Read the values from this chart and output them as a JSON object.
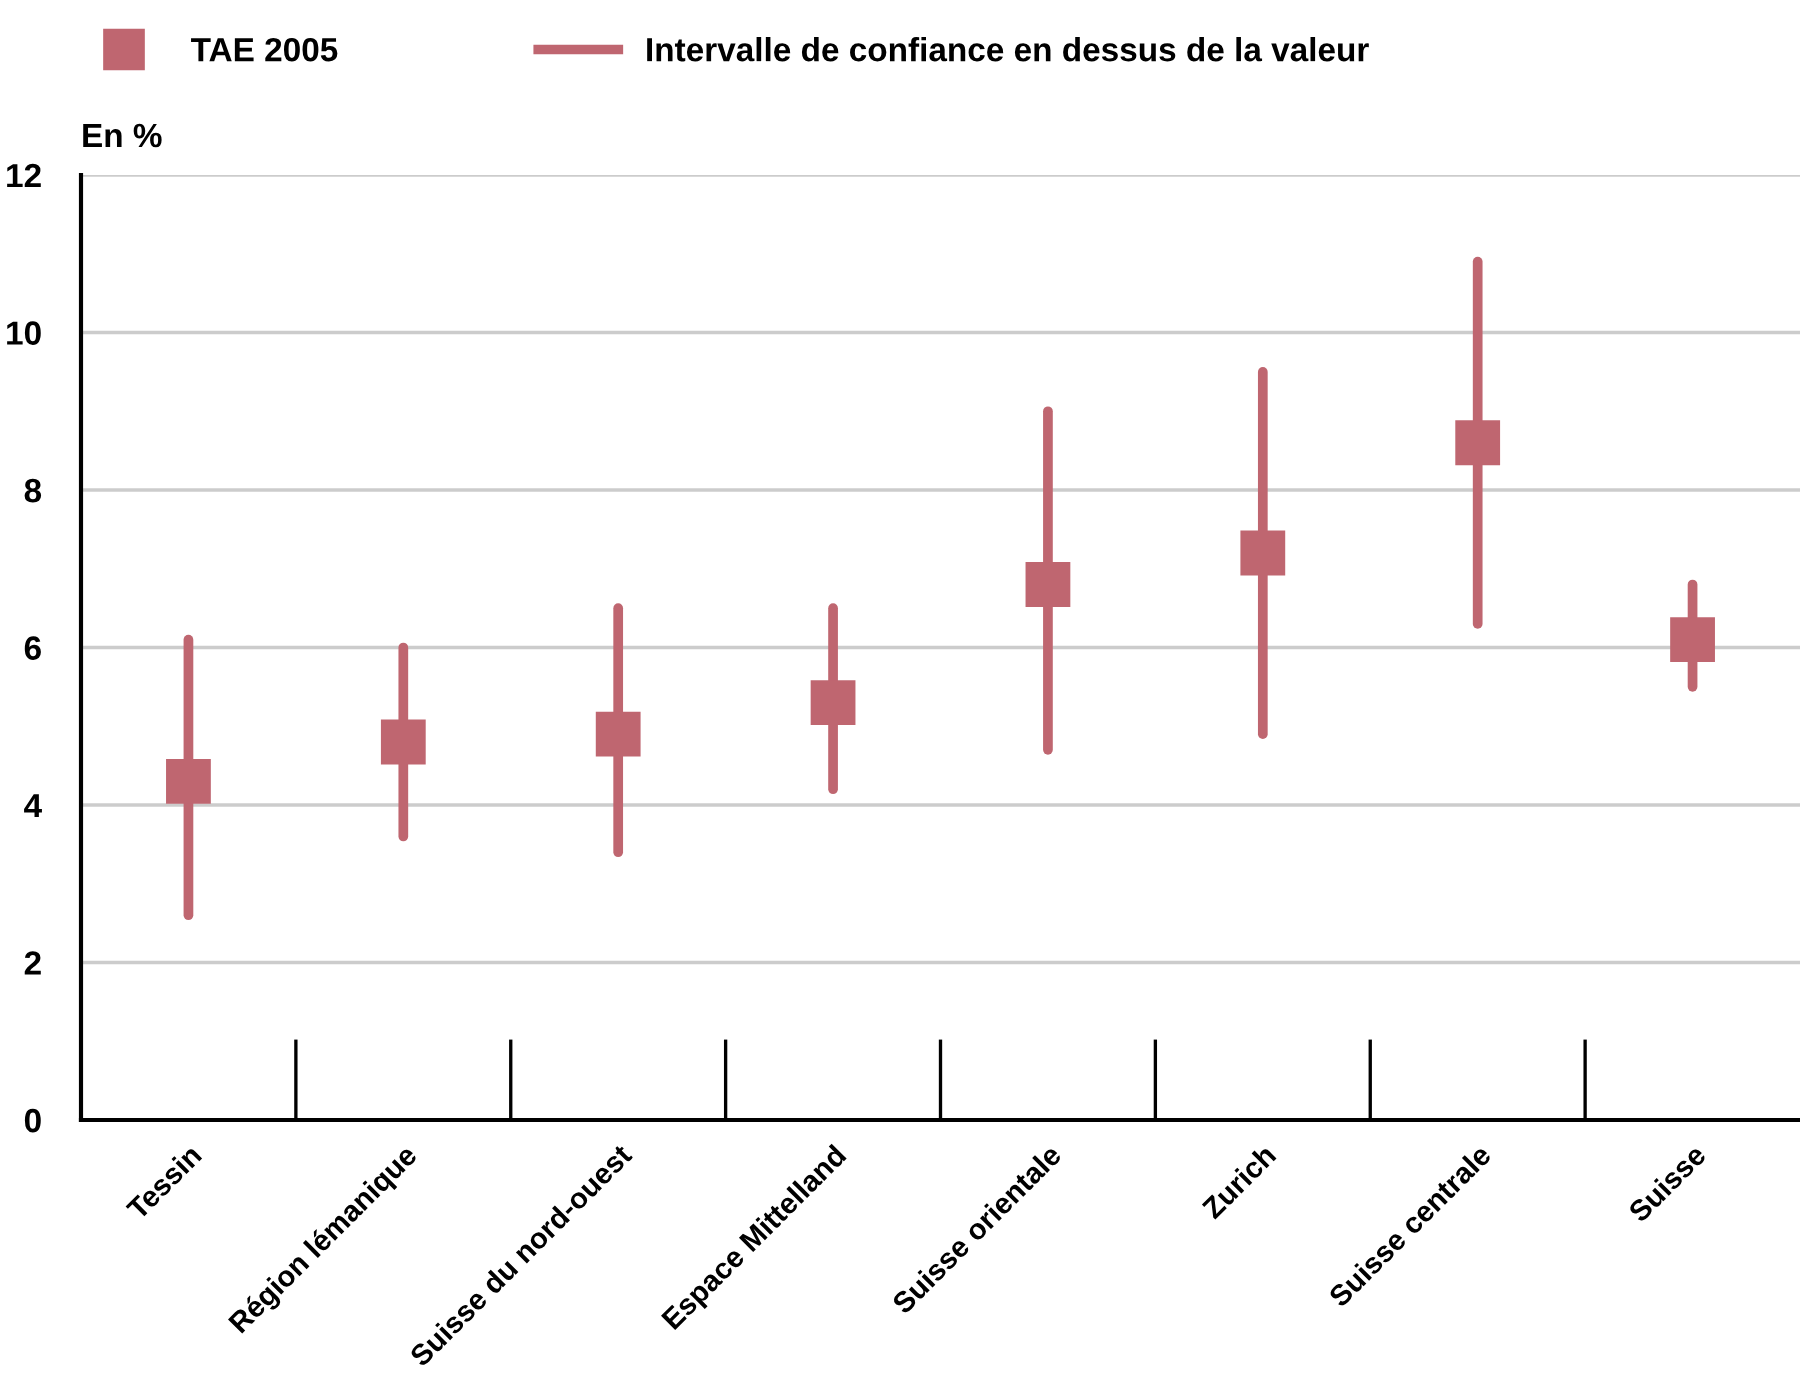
{
  "chart_data": {
    "type": "scatter",
    "ylabel": "En %",
    "categories": [
      "Tessin",
      "Région lémanique",
      "Suisse du nord-ouest",
      "Espace Mittelland",
      "Suisse orientale",
      "Zurich",
      "Suisse centrale",
      "Suisse"
    ],
    "series": [
      {
        "name": "TAE 2005",
        "color": "#bf6670",
        "marker": "square",
        "values": [
          4.3,
          4.8,
          4.9,
          5.3,
          6.8,
          7.2,
          8.6,
          6.1
        ],
        "errors": [
          [
            2.6,
            6.1
          ],
          [
            3.6,
            6.0
          ],
          [
            3.4,
            6.5
          ],
          [
            4.2,
            6.5
          ],
          [
            4.7,
            9.0
          ],
          [
            4.9,
            9.5
          ],
          [
            6.3,
            10.9
          ],
          [
            5.5,
            6.8
          ]
        ]
      }
    ],
    "annotations": [
      "Intervalle de confiance en dessus de la valeur"
    ],
    "ylim": [
      0,
      12
    ],
    "yticks": [
      0,
      2,
      4,
      6,
      8,
      10,
      12
    ],
    "grid": "y",
    "legend": "top left"
  }
}
